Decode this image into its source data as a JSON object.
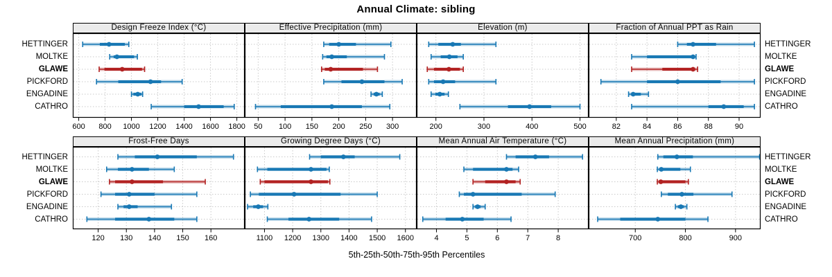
{
  "title": "Annual Climate: sibling",
  "xlabel": "5th-25th-50th-75th-95th Percentiles",
  "stations": [
    "HETTINGER",
    "MOLTKE",
    "GLAWE",
    "PICKFORD",
    "ENGADINE",
    "CATHRO"
  ],
  "highlight_station": "GLAWE",
  "percentiles": [
    5,
    25,
    50,
    75,
    95
  ],
  "colors": {
    "series": "#1878b4",
    "highlight": "#b22222",
    "grid": "#c9c9c9",
    "strip_bg": "#ebebeb",
    "panel_border": "#000000",
    "text": "#000000"
  },
  "chart_data": [
    {
      "type": "scatter",
      "title": "Design Freeze Index (°C)",
      "row": 0,
      "col": 0,
      "xticks": [
        600,
        800,
        1000,
        1200,
        1400,
        1600,
        1800
      ],
      "xlim": [
        555,
        1860
      ],
      "series": [
        {
          "name": "HETTINGER",
          "values": [
            630,
            760,
            830,
            950,
            980
          ]
        },
        {
          "name": "MOLTKE",
          "values": [
            835,
            865,
            890,
            1020,
            1045
          ]
        },
        {
          "name": "GLAWE",
          "values": [
            755,
            795,
            930,
            1080,
            1100
          ]
        },
        {
          "name": "PICKFORD",
          "values": [
            735,
            900,
            1145,
            1225,
            1385
          ]
        },
        {
          "name": "ENGADINE",
          "values": [
            1000,
            1015,
            1048,
            1075,
            1085
          ]
        },
        {
          "name": "CATHRO",
          "values": [
            1150,
            1400,
            1510,
            1700,
            1780
          ]
        }
      ]
    },
    {
      "type": "scatter",
      "title": "Effective Precipitation (mm)",
      "row": 0,
      "col": 1,
      "xticks": [
        50,
        100,
        150,
        200,
        250,
        300
      ],
      "xlim": [
        25,
        345
      ],
      "series": [
        {
          "name": "HETTINGER",
          "values": [
            172,
            182,
            200,
            232,
            297
          ]
        },
        {
          "name": "MOLTKE",
          "values": [
            170,
            177,
            187,
            215,
            285
          ]
        },
        {
          "name": "GLAWE",
          "values": [
            168,
            174,
            185,
            245,
            272
          ]
        },
        {
          "name": "PICKFORD",
          "values": [
            172,
            205,
            243,
            285,
            318
          ]
        },
        {
          "name": "ENGADINE",
          "values": [
            260,
            265,
            270,
            276,
            281
          ]
        },
        {
          "name": "CATHRO",
          "values": [
            45,
            92,
            187,
            243,
            295
          ]
        }
      ]
    },
    {
      "type": "scatter",
      "title": "Elevation (m)",
      "row": 0,
      "col": 2,
      "xticks": [
        200,
        300,
        400,
        500
      ],
      "xlim": [
        160,
        518
      ],
      "series": [
        {
          "name": "HETTINGER",
          "values": [
            185,
            205,
            235,
            252,
            325
          ]
        },
        {
          "name": "MOLTKE",
          "values": [
            190,
            210,
            228,
            245,
            257
          ]
        },
        {
          "name": "GLAWE",
          "values": [
            182,
            196,
            227,
            250,
            257
          ]
        },
        {
          "name": "PICKFORD",
          "values": [
            185,
            196,
            215,
            240,
            325
          ]
        },
        {
          "name": "ENGADINE",
          "values": [
            190,
            199,
            208,
            218,
            226
          ]
        },
        {
          "name": "CATHRO",
          "values": [
            250,
            350,
            395,
            440,
            500
          ]
        }
      ]
    },
    {
      "type": "scatter",
      "title": "Fraction of Annual PPT as Rain",
      "row": 0,
      "col": 3,
      "xticks": [
        82,
        84,
        86,
        88,
        90
      ],
      "xlim": [
        80.2,
        91.4
      ],
      "series": [
        {
          "name": "HETTINGER",
          "values": [
            86,
            86.6,
            87,
            88.5,
            91
          ]
        },
        {
          "name": "MOLTKE",
          "values": [
            83,
            84,
            87,
            87.1,
            87.2
          ]
        },
        {
          "name": "GLAWE",
          "values": [
            83,
            85,
            87,
            87.1,
            87.3
          ]
        },
        {
          "name": "PICKFORD",
          "values": [
            81,
            84,
            86,
            88.8,
            91
          ]
        },
        {
          "name": "ENGADINE",
          "values": [
            82.8,
            83,
            83.1,
            83.6,
            84.1
          ]
        },
        {
          "name": "CATHRO",
          "values": [
            83,
            88,
            89,
            90.3,
            91
          ]
        }
      ]
    },
    {
      "type": "scatter",
      "title": "Frost-Free Days",
      "row": 1,
      "col": 0,
      "xticks": [
        120,
        130,
        140,
        150,
        160
      ],
      "xlim": [
        111,
        172
      ],
      "series": [
        {
          "name": "HETTINGER",
          "values": [
            127,
            133,
            141,
            155,
            168
          ]
        },
        {
          "name": "MOLTKE",
          "values": [
            123,
            127,
            132,
            138,
            147
          ]
        },
        {
          "name": "GLAWE",
          "values": [
            124,
            126,
            132,
            143,
            158
          ]
        },
        {
          "name": "PICKFORD",
          "values": [
            121,
            126,
            131,
            140,
            155
          ]
        },
        {
          "name": "ENGADINE",
          "values": [
            127,
            129,
            131,
            134,
            146
          ]
        },
        {
          "name": "CATHRO",
          "values": [
            116,
            126,
            138,
            147,
            155
          ]
        }
      ]
    },
    {
      "type": "scatter",
      "title": "Growing Degree Days (°C)",
      "row": 1,
      "col": 1,
      "xticks": [
        1100,
        1200,
        1300,
        1400,
        1500,
        1600
      ],
      "xlim": [
        1030,
        1640
      ],
      "series": [
        {
          "name": "HETTINGER",
          "values": [
            1260,
            1300,
            1380,
            1420,
            1580
          ]
        },
        {
          "name": "MOLTKE",
          "values": [
            1075,
            1110,
            1265,
            1320,
            1330
          ]
        },
        {
          "name": "GLAWE",
          "values": [
            1085,
            1100,
            1265,
            1325,
            1332
          ]
        },
        {
          "name": "PICKFORD",
          "values": [
            1050,
            1080,
            1205,
            1370,
            1500
          ]
        },
        {
          "name": "ENGADINE",
          "values": [
            1040,
            1060,
            1078,
            1095,
            1112
          ]
        },
        {
          "name": "CATHRO",
          "values": [
            1110,
            1185,
            1258,
            1365,
            1480
          ]
        }
      ]
    },
    {
      "type": "scatter",
      "title": "Mean Annual Air Temperature (°C)",
      "row": 1,
      "col": 2,
      "xticks": [
        4,
        5,
        6,
        7,
        8
      ],
      "xlim": [
        3.35,
        9.0
      ],
      "series": [
        {
          "name": "HETTINGER",
          "values": [
            6.3,
            6.6,
            7.25,
            7.7,
            8.8
          ]
        },
        {
          "name": "MOLTKE",
          "values": [
            4.9,
            5.2,
            6.3,
            6.5,
            6.7
          ]
        },
        {
          "name": "GLAWE",
          "values": [
            5.2,
            5.6,
            6.3,
            6.6,
            6.75
          ]
        },
        {
          "name": "PICKFORD",
          "values": [
            4.75,
            4.9,
            5.2,
            6.8,
            7.9
          ]
        },
        {
          "name": "ENGADINE",
          "values": [
            5.2,
            5.27,
            5.35,
            5.45,
            5.6
          ]
        },
        {
          "name": "CATHRO",
          "values": [
            3.55,
            4.3,
            4.85,
            5.55,
            6.45
          ]
        }
      ]
    },
    {
      "type": "scatter",
      "title": "Mean Annual Precipitation (mm)",
      "row": 1,
      "col": 3,
      "xticks": [
        700,
        800,
        900
      ],
      "xlim": [
        607,
        950
      ],
      "series": [
        {
          "name": "HETTINGER",
          "values": [
            745,
            756,
            783,
            815,
            948
          ]
        },
        {
          "name": "MOLTKE",
          "values": [
            744,
            748,
            752,
            790,
            810
          ]
        },
        {
          "name": "GLAWE",
          "values": [
            744,
            748,
            751,
            800,
            806
          ]
        },
        {
          "name": "PICKFORD",
          "values": [
            752,
            765,
            793,
            816,
            893
          ]
        },
        {
          "name": "ENGADINE",
          "values": [
            780,
            785,
            791,
            797,
            803
          ]
        },
        {
          "name": "CATHRO",
          "values": [
            625,
            670,
            745,
            800,
            845
          ]
        }
      ]
    }
  ]
}
